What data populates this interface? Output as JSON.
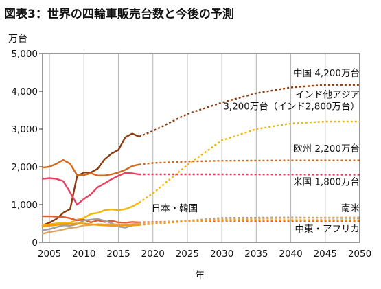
{
  "chart_data": {
    "type": "line",
    "title": "図表3：世界の四輪車販売台数と今後の予測",
    "y_unit": "万台",
    "xlabel": "年",
    "xlim": [
      2004,
      2050
    ],
    "ylim": [
      0,
      5000
    ],
    "x_ticks": [
      2005,
      2010,
      2015,
      2020,
      2025,
      2030,
      2035,
      2040,
      2045,
      2050
    ],
    "y_ticks": [
      0,
      1000,
      2000,
      3000,
      4000,
      5000
    ],
    "y_tick_labels": [
      "0",
      "1,000",
      "2,000",
      "3,000",
      "4,000",
      "5,000"
    ],
    "grid": "vertical",
    "series": [
      {
        "color": "#8B3A0E",
        "actual": [
          [
            2004,
            450
          ],
          [
            2005,
            520
          ],
          [
            2006,
            620
          ],
          [
            2007,
            780
          ],
          [
            2008,
            880
          ],
          [
            2009,
            1750
          ],
          [
            2010,
            1850
          ],
          [
            2011,
            1850
          ],
          [
            2012,
            1950
          ],
          [
            2013,
            2200
          ],
          [
            2014,
            2350
          ],
          [
            2015,
            2450
          ],
          [
            2016,
            2780
          ],
          [
            2017,
            2880
          ],
          [
            2018,
            2800
          ]
        ],
        "forecast": [
          [
            2018,
            2800
          ],
          [
            2020,
            2950
          ],
          [
            2025,
            3400
          ],
          [
            2030,
            3700
          ],
          [
            2035,
            3950
          ],
          [
            2040,
            4100
          ],
          [
            2045,
            4170
          ],
          [
            2050,
            4170
          ]
        ]
      },
      {
        "color": "#F2B705",
        "actual": [
          [
            2004,
            450
          ],
          [
            2006,
            500
          ],
          [
            2008,
            520
          ],
          [
            2009,
            600
          ],
          [
            2010,
            650
          ],
          [
            2011,
            750
          ],
          [
            2012,
            780
          ],
          [
            2013,
            850
          ],
          [
            2014,
            870
          ],
          [
            2015,
            850
          ],
          [
            2016,
            880
          ],
          [
            2017,
            950
          ],
          [
            2018,
            1050
          ]
        ],
        "forecast": [
          [
            2018,
            1050
          ],
          [
            2020,
            1300
          ],
          [
            2025,
            2050
          ],
          [
            2030,
            2700
          ],
          [
            2035,
            3000
          ],
          [
            2040,
            3150
          ],
          [
            2045,
            3200
          ],
          [
            2050,
            3200
          ]
        ]
      },
      {
        "color": "#D2691E",
        "actual": [
          [
            2004,
            1980
          ],
          [
            2005,
            2000
          ],
          [
            2006,
            2080
          ],
          [
            2007,
            2180
          ],
          [
            2008,
            2080
          ],
          [
            2009,
            1780
          ],
          [
            2010,
            1780
          ],
          [
            2011,
            1830
          ],
          [
            2012,
            1770
          ],
          [
            2013,
            1770
          ],
          [
            2014,
            1800
          ],
          [
            2015,
            1850
          ],
          [
            2016,
            1920
          ],
          [
            2017,
            2020
          ],
          [
            2018,
            2060
          ]
        ],
        "forecast": [
          [
            2018,
            2060
          ],
          [
            2020,
            2100
          ],
          [
            2025,
            2140
          ],
          [
            2030,
            2160
          ],
          [
            2040,
            2170
          ],
          [
            2050,
            2170
          ]
        ]
      },
      {
        "color": "#E8405E",
        "actual": [
          [
            2004,
            1680
          ],
          [
            2005,
            1700
          ],
          [
            2006,
            1680
          ],
          [
            2007,
            1620
          ],
          [
            2008,
            1320
          ],
          [
            2009,
            1000
          ],
          [
            2010,
            1150
          ],
          [
            2011,
            1270
          ],
          [
            2012,
            1460
          ],
          [
            2013,
            1560
          ],
          [
            2014,
            1670
          ],
          [
            2015,
            1760
          ],
          [
            2016,
            1840
          ],
          [
            2017,
            1830
          ],
          [
            2018,
            1800
          ]
        ],
        "forecast": [
          [
            2018,
            1800
          ],
          [
            2020,
            1800
          ],
          [
            2030,
            1800
          ],
          [
            2050,
            1790
          ]
        ]
      },
      {
        "color": "#E35A2C",
        "actual": [
          [
            2004,
            690
          ],
          [
            2005,
            690
          ],
          [
            2006,
            680
          ],
          [
            2007,
            670
          ],
          [
            2008,
            640
          ],
          [
            2009,
            580
          ],
          [
            2010,
            600
          ],
          [
            2011,
            530
          ],
          [
            2012,
            580
          ],
          [
            2013,
            540
          ],
          [
            2014,
            570
          ],
          [
            2015,
            530
          ],
          [
            2016,
            520
          ],
          [
            2017,
            540
          ],
          [
            2018,
            530
          ]
        ],
        "forecast": [
          [
            2018,
            530
          ],
          [
            2025,
            560
          ],
          [
            2030,
            570
          ],
          [
            2050,
            560
          ]
        ]
      },
      {
        "color": "#9E9E9E",
        "actual": [
          [
            2004,
            320
          ],
          [
            2005,
            350
          ],
          [
            2006,
            400
          ],
          [
            2007,
            450
          ],
          [
            2008,
            440
          ],
          [
            2009,
            480
          ],
          [
            2010,
            580
          ],
          [
            2011,
            600
          ],
          [
            2012,
            620
          ],
          [
            2013,
            570
          ],
          [
            2014,
            510
          ],
          [
            2015,
            420
          ],
          [
            2016,
            390
          ],
          [
            2017,
            450
          ],
          [
            2018,
            470
          ]
        ],
        "forecast": [
          [
            2018,
            470
          ],
          [
            2025,
            570
          ],
          [
            2030,
            650
          ],
          [
            2040,
            660
          ],
          [
            2050,
            640
          ]
        ]
      },
      {
        "color": "#D9A66A",
        "actual": [
          [
            2004,
            230
          ],
          [
            2005,
            270
          ],
          [
            2006,
            300
          ],
          [
            2007,
            340
          ],
          [
            2008,
            380
          ],
          [
            2009,
            400
          ],
          [
            2010,
            450
          ],
          [
            2011,
            460
          ],
          [
            2012,
            480
          ],
          [
            2013,
            470
          ],
          [
            2014,
            480
          ],
          [
            2015,
            470
          ],
          [
            2016,
            460
          ],
          [
            2017,
            480
          ],
          [
            2018,
            500
          ]
        ],
        "forecast": [
          [
            2018,
            500
          ],
          [
            2025,
            570
          ],
          [
            2030,
            620
          ],
          [
            2040,
            650
          ],
          [
            2050,
            660
          ]
        ]
      },
      {
        "color": "#F39C12",
        "actual": [
          [
            2004,
            420
          ],
          [
            2005,
            440
          ],
          [
            2006,
            460
          ],
          [
            2007,
            480
          ],
          [
            2008,
            490
          ],
          [
            2009,
            500
          ],
          [
            2010,
            500
          ],
          [
            2011,
            480
          ],
          [
            2012,
            460
          ],
          [
            2013,
            450
          ],
          [
            2014,
            440
          ],
          [
            2015,
            440
          ],
          [
            2016,
            450
          ],
          [
            2017,
            450
          ],
          [
            2018,
            460
          ]
        ],
        "forecast": [
          [
            2018,
            460
          ],
          [
            2025,
            560
          ],
          [
            2030,
            590
          ],
          [
            2050,
            590
          ]
        ]
      }
    ],
    "annotations": [
      {
        "text": "中国 4,200万台",
        "x": 2050,
        "y": 4400,
        "anchor": "end"
      },
      {
        "text": "インド他アジア",
        "x": 2050,
        "y": 3830,
        "anchor": "end"
      },
      {
        "text": "3,200万台（インド2,800万台）",
        "x": 2050,
        "y": 3520,
        "anchor": "end"
      },
      {
        "text": "欧州 2,200万台",
        "x": 2050,
        "y": 2400,
        "anchor": "end"
      },
      {
        "text": "米国 1,800万台",
        "x": 2050,
        "y": 1520,
        "anchor": "end"
      },
      {
        "text": "日本・韓国",
        "x": 2019.8,
        "y": 820,
        "anchor": "start"
      },
      {
        "text": "南米",
        "x": 2050,
        "y": 820,
        "anchor": "end"
      },
      {
        "text": "中東・アフリカ",
        "x": 2050,
        "y": 270,
        "anchor": "end"
      }
    ]
  }
}
